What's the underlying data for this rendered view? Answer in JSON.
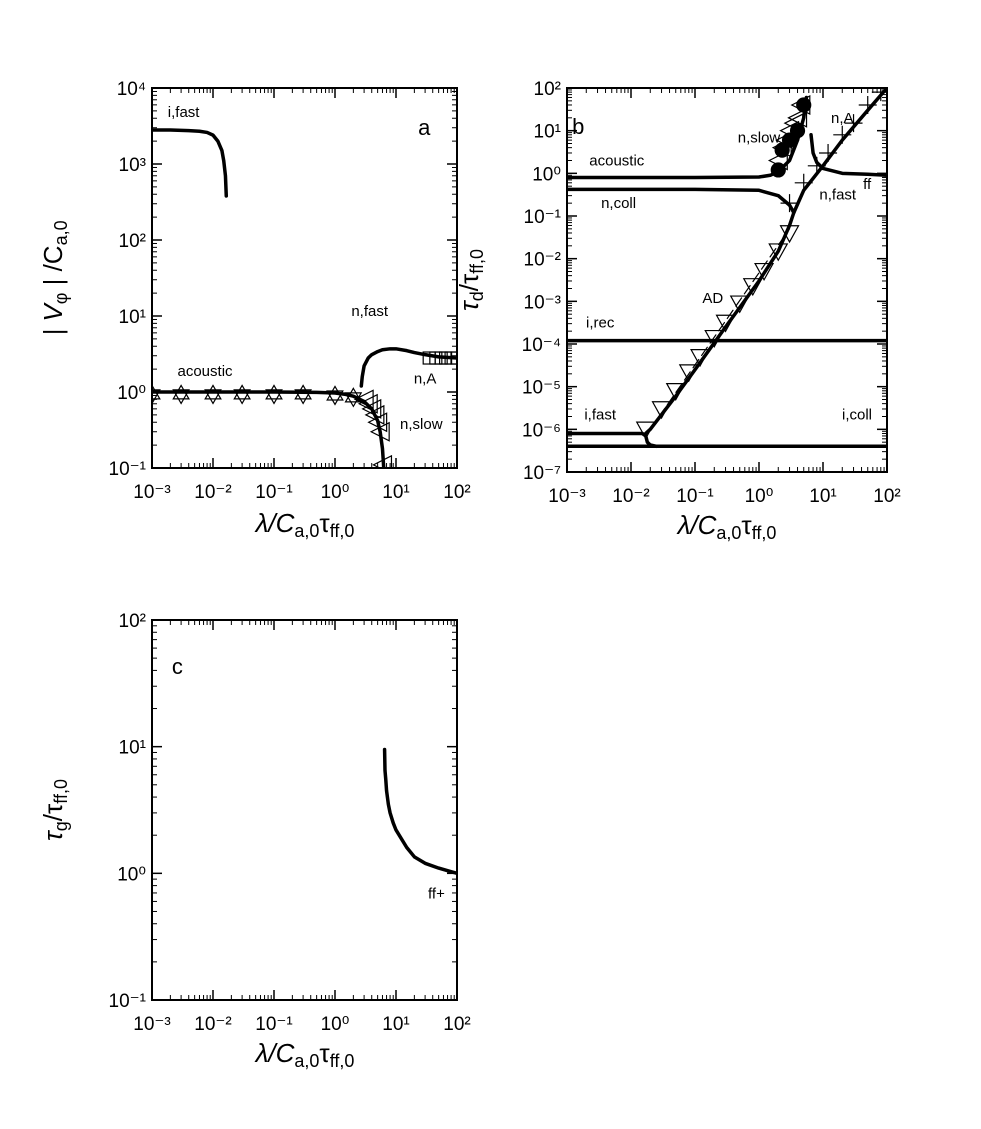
{
  "chart_data": [
    {
      "type": "line",
      "xlog": true,
      "ylog": true,
      "xlim": [
        0.001,
        100
      ],
      "ylim": [
        0.1,
        10000
      ],
      "xticks": [
        {
          "value": 0.001,
          "label": "10⁻³"
        },
        {
          "value": 0.01,
          "label": "10⁻²"
        },
        {
          "value": 0.1,
          "label": "10⁻¹"
        },
        {
          "value": 1,
          "label": "10⁰"
        },
        {
          "value": 10,
          "label": "10¹"
        },
        {
          "value": 100,
          "label": "10²"
        }
      ],
      "yticks": [
        {
          "value": 0.1,
          "label": "10⁻¹"
        },
        {
          "value": 1,
          "label": "10⁰"
        },
        {
          "value": 10,
          "label": "10¹"
        },
        {
          "value": 100,
          "label": "10²"
        },
        {
          "value": 1000,
          "label": "10³"
        },
        {
          "value": 10000,
          "label": "10⁴"
        }
      ],
      "xlabel": [
        {
          "text": "λ/C"
        },
        {
          "sub": "a,0"
        },
        {
          "text": "τ"
        },
        {
          "sub": "ff,0"
        }
      ],
      "ylabel": [
        {
          "text": "| V"
        },
        {
          "sub": "φ"
        },
        {
          "text": " | /C"
        },
        {
          "sub": "a,0"
        }
      ],
      "annotations": [
        "a",
        "i,fast",
        "acoustic",
        "n,fast",
        "n,A",
        "n,slow"
      ],
      "series": [
        {
          "style": "line",
          "color": "#000000",
          "x": [
            0.001,
            0.002,
            0.004,
            0.006,
            0.008,
            0.01,
            0.012,
            0.014,
            0.015,
            0.016,
            0.0165
          ],
          "values": [
            2800,
            2800,
            2750,
            2700,
            2600,
            2400,
            2000,
            1500,
            1100,
            700,
            380
          ]
        },
        {
          "style": "line",
          "color": "#000000",
          "x": [
            0.001,
            0.01,
            0.1,
            0.5,
            1,
            1.5,
            2,
            3,
            4,
            5,
            5.5,
            6,
            6.3
          ],
          "values": [
            1.0,
            1.0,
            1.0,
            0.99,
            0.97,
            0.93,
            0.88,
            0.75,
            0.6,
            0.42,
            0.3,
            0.18,
            0.1
          ]
        },
        {
          "style": "line",
          "color": "#000000",
          "x": [
            2.7,
            2.8,
            3,
            3.5,
            4,
            5,
            6,
            8,
            10,
            15,
            20,
            30,
            50,
            100
          ],
          "values": [
            1.2,
            1.6,
            2.2,
            2.8,
            3.1,
            3.4,
            3.6,
            3.7,
            3.7,
            3.5,
            3.3,
            3.1,
            2.9,
            2.8
          ]
        },
        {
          "style": "hexagram",
          "color": "#000000",
          "x": [
            0.001,
            0.003,
            0.01,
            0.03,
            0.1,
            0.3,
            1,
            2
          ],
          "values": [
            0.93,
            0.93,
            0.93,
            0.93,
            0.93,
            0.93,
            0.9,
            0.85
          ]
        },
        {
          "style": "square",
          "color": "#000000",
          "x": [
            35,
            45,
            55,
            65,
            80,
            100
          ],
          "values": [
            2.8,
            2.8,
            2.8,
            2.8,
            2.8,
            2.8
          ]
        },
        {
          "style": "triangle-left",
          "color": "#000000",
          "x": [
            3,
            3.5,
            4,
            4.5,
            5,
            5.5,
            6
          ],
          "values": [
            0.8,
            0.7,
            0.6,
            0.5,
            0.4,
            0.3,
            0.11
          ]
        }
      ]
    },
    {
      "type": "line",
      "xlog": true,
      "ylog": true,
      "xlim": [
        0.001,
        100
      ],
      "ylim": [
        1e-07,
        100
      ],
      "xticks": [
        {
          "value": 0.001,
          "label": "10⁻³"
        },
        {
          "value": 0.01,
          "label": "10⁻²"
        },
        {
          "value": 0.1,
          "label": "10⁻¹"
        },
        {
          "value": 1,
          "label": "10⁰"
        },
        {
          "value": 10,
          "label": "10¹"
        },
        {
          "value": 100,
          "label": "10²"
        }
      ],
      "yticks": [
        {
          "value": 1e-07,
          "label": "10⁻⁷"
        },
        {
          "value": 1e-06,
          "label": "10⁻⁶"
        },
        {
          "value": 1e-05,
          "label": "10⁻⁵"
        },
        {
          "value": 0.0001,
          "label": "10⁻⁴"
        },
        {
          "value": 0.001,
          "label": "10⁻³"
        },
        {
          "value": 0.01,
          "label": "10⁻²"
        },
        {
          "value": 0.1,
          "label": "10⁻¹"
        },
        {
          "value": 1,
          "label": "10⁰"
        },
        {
          "value": 10,
          "label": "10¹"
        },
        {
          "value": 100,
          "label": "10²"
        }
      ],
      "xlabel": [
        {
          "text": "λ/C"
        },
        {
          "sub": "a,0"
        },
        {
          "text": "τ"
        },
        {
          "sub": "ff,0"
        }
      ],
      "ylabel": [
        {
          "text": "τ"
        },
        {
          "sub": "d"
        },
        {
          "text": "/τ"
        },
        {
          "sub": "ff,0"
        }
      ],
      "annotations": [
        "b",
        "n,A",
        "n,slow",
        "acoustic",
        "ff",
        "n,fast",
        "n,coll",
        "AD",
        "i,rec",
        "i,fast",
        "i,coll"
      ],
      "series": [
        {
          "style": "line",
          "color": "#000000",
          "x": [
            0.001,
            0.1,
            1,
            1.5,
            2,
            3,
            4,
            5,
            5.5
          ],
          "values": [
            0.8,
            0.8,
            0.82,
            0.9,
            1.1,
            2,
            6,
            20,
            60
          ]
        },
        {
          "style": "line",
          "color": "#000000",
          "x": [
            0.001,
            0.1,
            1,
            2,
            3,
            3.5
          ],
          "values": [
            0.42,
            0.42,
            0.4,
            0.3,
            0.18,
            0.12
          ]
        },
        {
          "style": "line",
          "color": "#000000",
          "x": [
            0.017,
            0.02,
            0.05,
            0.1,
            0.3,
            1,
            2,
            3,
            3.5,
            5,
            10,
            20,
            50,
            100
          ],
          "values": [
            8e-07,
            1e-06,
            6e-06,
            2.5e-05,
            0.00025,
            0.003,
            0.015,
            0.06,
            0.12,
            0.4,
            1.5,
            6,
            30,
            100
          ]
        },
        {
          "style": "line",
          "color": "#000000",
          "x": [
            6.5,
            7,
            8,
            10,
            20,
            50,
            100
          ],
          "values": [
            8,
            3,
            1.8,
            1.3,
            1.0,
            0.95,
            0.9
          ]
        },
        {
          "style": "line",
          "color": "#000000",
          "x": [
            0.001,
            0.015,
            0.017,
            0.018,
            0.02,
            0.025
          ],
          "values": [
            8e-07,
            8e-07,
            7e-07,
            5e-07,
            4.3e-07,
            4e-07
          ]
        },
        {
          "style": "line",
          "color": "#000000",
          "x": [
            0.001,
            100
          ],
          "values": [
            4e-07,
            4e-07
          ]
        },
        {
          "style": "line",
          "color": "#000000",
          "x": [
            0.001,
            100
          ],
          "values": [
            0.00012,
            0.00012
          ]
        },
        {
          "style": "dashed",
          "color": "#000000",
          "x": [
            0.02,
            3
          ],
          "values": [
            1e-06,
            0.05
          ]
        },
        {
          "style": "triangle-down",
          "color": "#000000",
          "x": [
            0.017,
            0.03,
            0.05,
            0.08,
            0.12,
            0.2,
            0.3,
            0.5,
            0.8,
            1.2,
            2,
            3
          ],
          "values": [
            1e-06,
            3e-06,
            8e-06,
            2.2e-05,
            5e-05,
            0.00014,
            0.00032,
            0.0009,
            0.0023,
            0.0052,
            0.015,
            0.04
          ]
        },
        {
          "style": "plus",
          "color": "#000000",
          "x": [
            3,
            5,
            8,
            12,
            20,
            30,
            50,
            80
          ],
          "values": [
            0.2,
            0.6,
            1.5,
            3,
            8,
            15,
            40,
            80
          ]
        },
        {
          "style": "triangle-left",
          "color": "#000000",
          "x": [
            2,
            2.3,
            2.6,
            3,
            3.5,
            4,
            4.5
          ],
          "values": [
            2,
            4,
            6,
            10,
            15,
            20,
            40
          ]
        },
        {
          "style": "circle",
          "color": "#000000",
          "x": [
            2,
            2.3,
            3,
            4,
            5
          ],
          "values": [
            1.2,
            3.5,
            6,
            10,
            40
          ]
        }
      ]
    },
    {
      "type": "line",
      "xlog": true,
      "ylog": true,
      "xlim": [
        0.001,
        100
      ],
      "ylim": [
        0.1,
        100
      ],
      "xticks": [
        {
          "value": 0.001,
          "label": "10⁻³"
        },
        {
          "value": 0.01,
          "label": "10⁻²"
        },
        {
          "value": 0.1,
          "label": "10⁻¹"
        },
        {
          "value": 1,
          "label": "10⁰"
        },
        {
          "value": 10,
          "label": "10¹"
        },
        {
          "value": 100,
          "label": "10²"
        }
      ],
      "yticks": [
        {
          "value": 0.1,
          "label": "10⁻¹"
        },
        {
          "value": 1,
          "label": "10⁰"
        },
        {
          "value": 10,
          "label": "10¹"
        },
        {
          "value": 100,
          "label": "10²"
        }
      ],
      "xlabel": [
        {
          "text": "λ/C"
        },
        {
          "sub": "a,0"
        },
        {
          "text": "τ"
        },
        {
          "sub": "ff,0"
        }
      ],
      "ylabel": [
        {
          "text": "τ"
        },
        {
          "sub": "g"
        },
        {
          "text": "/τ"
        },
        {
          "sub": "ff,0"
        }
      ],
      "annotations": [
        "c",
        "ff+"
      ],
      "series": [
        {
          "style": "line",
          "color": "#000000",
          "x": [
            6.5,
            6.6,
            6.8,
            7,
            7.5,
            8,
            9,
            10,
            15,
            20,
            30,
            50,
            80,
            100
          ],
          "values": [
            9.5,
            6.5,
            5.5,
            4.5,
            3.5,
            3,
            2.5,
            2.2,
            1.6,
            1.35,
            1.2,
            1.1,
            1.03,
            1.0
          ]
        }
      ]
    }
  ]
}
